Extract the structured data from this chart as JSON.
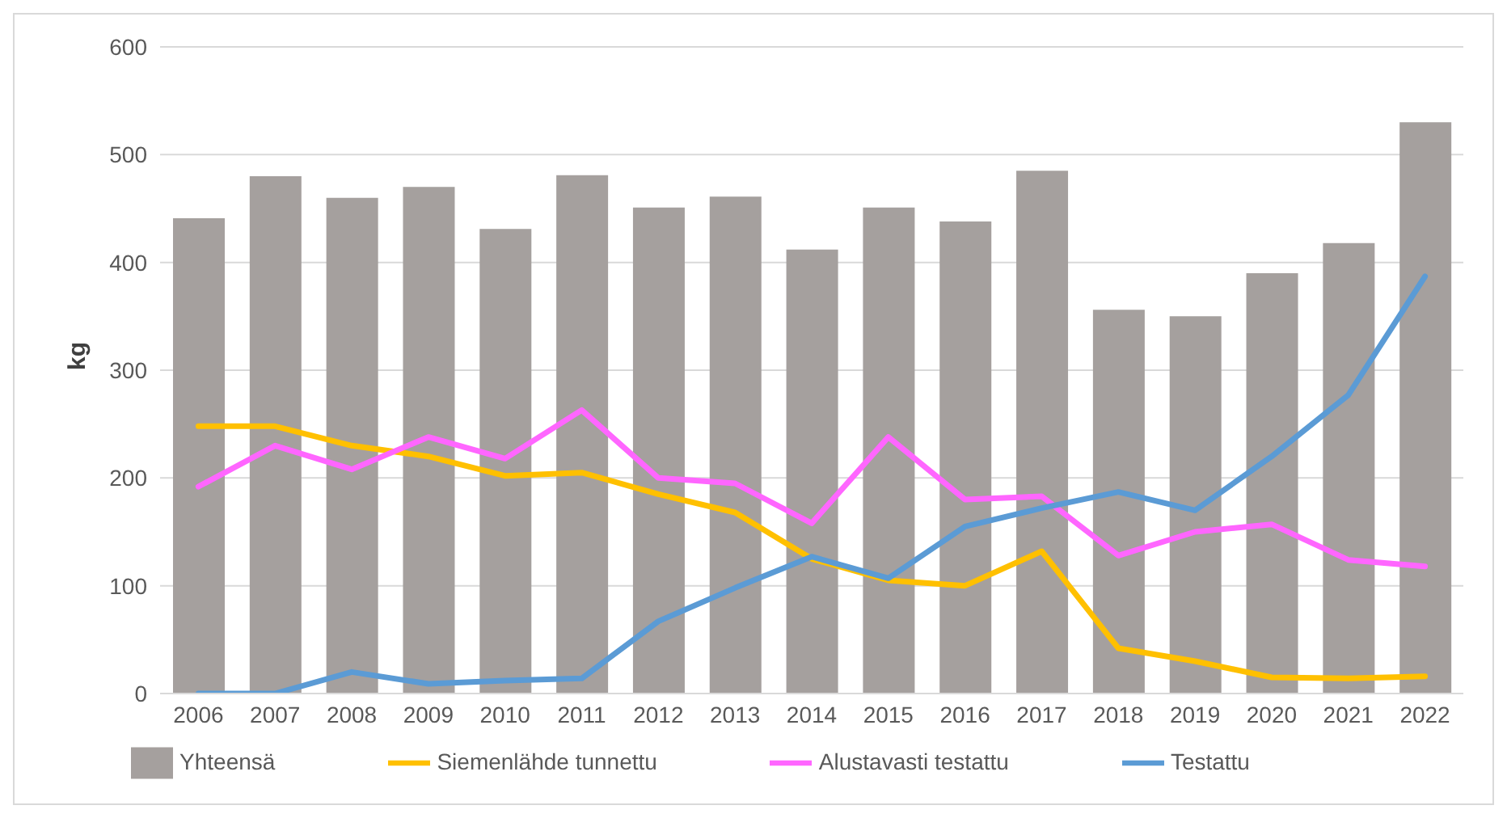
{
  "chart_data": {
    "type": "bar",
    "ylabel": "kg",
    "categories": [
      "2006",
      "2007",
      "2008",
      "2009",
      "2010",
      "2011",
      "2012",
      "2013",
      "2014",
      "2015",
      "2016",
      "2017",
      "2018",
      "2019",
      "2020",
      "2021",
      "2022"
    ],
    "series": [
      {
        "name": "Yhteensä",
        "color": "#a5a09e",
        "values": [
          441,
          480,
          460,
          470,
          431,
          481,
          451,
          461,
          412,
          451,
          438,
          485,
          356,
          350,
          390,
          418,
          530
        ]
      },
      {
        "name": "Siemenlähde tunnettu",
        "type": "line",
        "color": "#ffc000",
        "values": [
          248,
          248,
          230,
          220,
          202,
          205,
          185,
          168,
          125,
          105,
          100,
          132,
          42,
          30,
          15,
          14,
          16
        ]
      },
      {
        "name": "Alustavasti testattu",
        "type": "line",
        "color": "#ff66ff",
        "values": [
          192,
          230,
          208,
          238,
          218,
          263,
          200,
          195,
          158,
          238,
          180,
          183,
          128,
          150,
          157,
          124,
          118
        ]
      },
      {
        "name": "Testattu",
        "type": "line",
        "color": "#5b9bd5",
        "values": [
          0,
          0,
          20,
          9,
          12,
          14,
          67,
          98,
          127,
          107,
          155,
          172,
          187,
          170,
          220,
          277,
          387
        ]
      }
    ],
    "ylim": [
      0,
      600
    ],
    "yticks": [
      0,
      100,
      200,
      300,
      400,
      500,
      600
    ],
    "grid": "y",
    "legend": "bottom",
    "marker": "none",
    "line_style": "solid"
  }
}
